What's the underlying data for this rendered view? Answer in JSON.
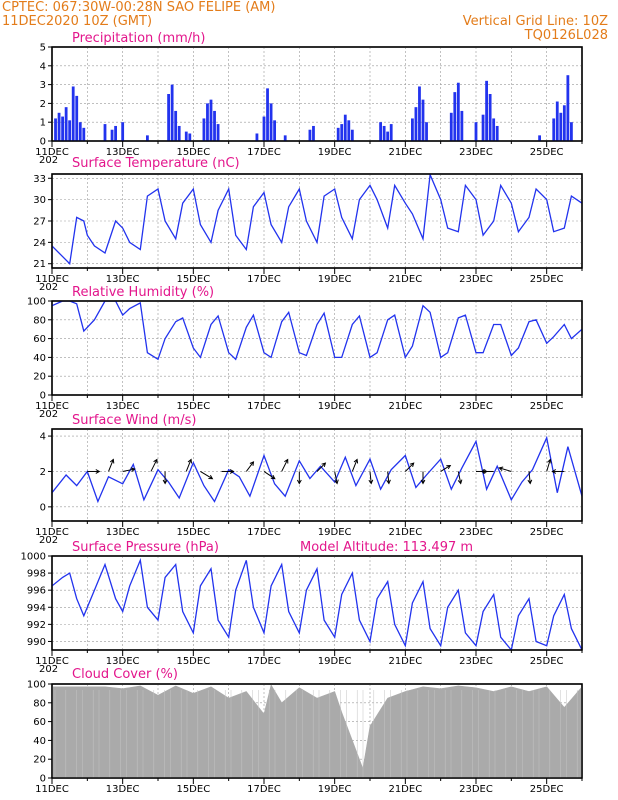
{
  "header": {
    "line1": "CPTEC:   067:30W-00:28N  SAO FELIPE (AM)",
    "line2": "11DEC2020 10Z (GMT)",
    "right1": "Vertical Grid Line: 10Z",
    "right2": "TQ0126L028"
  },
  "colors": {
    "series": "#2233ee",
    "cloud": "#aaaaaa",
    "header": "#e37c1a",
    "title": "#e3168c",
    "grid": "#999999"
  },
  "x_ticks": [
    "11DEC",
    "13DEC",
    "15DEC",
    "17DEC",
    "19DEC",
    "21DEC",
    "23DEC",
    "25DEC"
  ],
  "year_stub": "202",
  "chart_data": [
    {
      "id": "precipitation",
      "type": "bar",
      "title": "Precipitation (mm/h)",
      "ylim": [
        0,
        5
      ],
      "yticks": [
        0,
        1,
        2,
        3,
        4,
        5
      ],
      "grid": true,
      "x_days": [
        0.1,
        0.2,
        0.3,
        0.4,
        0.5,
        0.6,
        0.7,
        0.8,
        0.9,
        1.5,
        1.7,
        1.8,
        2.0,
        2.7,
        3.3,
        3.4,
        3.5,
        3.6,
        3.8,
        3.9,
        4.3,
        4.4,
        4.5,
        4.6,
        4.7,
        5.8,
        6.0,
        6.1,
        6.2,
        6.3,
        6.6,
        7.3,
        7.4,
        8.1,
        8.2,
        8.3,
        8.4,
        8.5,
        9.3,
        9.4,
        9.5,
        9.6,
        10.2,
        10.3,
        10.4,
        10.5,
        10.6,
        11.3,
        11.4,
        11.5,
        11.6,
        12.0,
        12.2,
        12.3,
        12.4,
        12.5,
        12.6,
        13.8,
        14.2,
        14.3,
        14.4,
        14.5,
        14.6,
        14.7
      ],
      "values": [
        1.2,
        1.5,
        1.3,
        1.8,
        1.1,
        2.9,
        2.4,
        1.0,
        0.7,
        0.9,
        0.6,
        0.8,
        1.0,
        0.3,
        2.5,
        3.0,
        1.6,
        0.8,
        0.5,
        0.4,
        1.2,
        2.0,
        2.2,
        1.6,
        0.9,
        0.4,
        1.3,
        2.8,
        2.0,
        1.1,
        0.3,
        0.6,
        0.8,
        0.7,
        0.9,
        1.4,
        1.1,
        0.6,
        1.0,
        0.8,
        0.5,
        0.9,
        1.2,
        1.8,
        2.9,
        2.2,
        1.0,
        1.5,
        2.6,
        3.1,
        1.6,
        1.0,
        1.4,
        3.2,
        2.5,
        1.2,
        0.8,
        0.3,
        1.2,
        2.1,
        1.5,
        1.9,
        3.5,
        1.0
      ]
    },
    {
      "id": "temperature",
      "type": "line",
      "title": "Surface Temperature (nC)",
      "ylim": [
        20.4,
        33.6
      ],
      "yticks": [
        21,
        24,
        27,
        30,
        33
      ],
      "grid": true,
      "x_days": [
        0.0,
        0.3,
        0.5,
        0.7,
        0.9,
        1.0,
        1.2,
        1.5,
        1.8,
        2.0,
        2.2,
        2.5,
        2.7,
        3.0,
        3.2,
        3.5,
        3.7,
        4.0,
        4.2,
        4.5,
        4.7,
        5.0,
        5.2,
        5.5,
        5.7,
        6.0,
        6.2,
        6.5,
        6.7,
        7.0,
        7.2,
        7.5,
        7.7,
        8.0,
        8.2,
        8.5,
        8.7,
        9.0,
        9.2,
        9.5,
        9.7,
        10.0,
        10.2,
        10.5,
        10.7,
        11.0,
        11.2,
        11.5,
        11.7,
        12.0,
        12.2,
        12.5,
        12.7,
        13.0,
        13.2,
        13.5,
        13.7,
        14.0,
        14.2,
        14.5,
        14.7,
        15.0
      ],
      "values": [
        23.5,
        22.0,
        21.0,
        27.5,
        27.0,
        25.0,
        23.5,
        22.5,
        27.0,
        26.0,
        24.0,
        23.0,
        30.5,
        31.5,
        27.0,
        24.5,
        29.5,
        31.5,
        26.5,
        24.0,
        28.5,
        31.5,
        25.0,
        23.0,
        29.0,
        31.0,
        26.5,
        24.0,
        29.0,
        31.5,
        27.0,
        24.0,
        30.5,
        31.5,
        27.5,
        24.5,
        30.0,
        32.0,
        30.0,
        26.0,
        32.0,
        29.5,
        28.0,
        24.5,
        33.5,
        30.0,
        26.0,
        25.5,
        32.0,
        30.0,
        25.0,
        27.0,
        32.0,
        29.5,
        25.5,
        27.5,
        31.5,
        30.0,
        25.5,
        26.0,
        30.5,
        29.5
      ]
    },
    {
      "id": "humidity",
      "type": "line",
      "title": "Relative Humidity (%)",
      "ylim": [
        0,
        100
      ],
      "yticks": [
        0,
        20,
        40,
        60,
        80,
        100
      ],
      "grid": true,
      "x_days": [
        0.0,
        0.3,
        0.5,
        0.7,
        0.9,
        1.2,
        1.5,
        1.8,
        2.0,
        2.2,
        2.5,
        2.7,
        3.0,
        3.2,
        3.5,
        3.7,
        4.0,
        4.2,
        4.5,
        4.7,
        5.0,
        5.2,
        5.5,
        5.7,
        6.0,
        6.2,
        6.5,
        6.7,
        7.0,
        7.2,
        7.5,
        7.7,
        8.0,
        8.2,
        8.5,
        8.7,
        9.0,
        9.2,
        9.5,
        9.7,
        10.0,
        10.2,
        10.5,
        10.7,
        11.0,
        11.2,
        11.5,
        11.7,
        12.0,
        12.2,
        12.5,
        12.7,
        13.0,
        13.2,
        13.5,
        13.7,
        14.0,
        14.2,
        14.5,
        14.7,
        15.0
      ],
      "values": [
        95,
        100,
        100,
        97,
        68,
        80,
        100,
        100,
        85,
        92,
        98,
        45,
        38,
        60,
        78,
        82,
        50,
        40,
        75,
        84,
        45,
        38,
        72,
        85,
        45,
        40,
        78,
        88,
        45,
        42,
        75,
        87,
        40,
        40,
        75,
        84,
        40,
        45,
        80,
        85,
        40,
        52,
        95,
        88,
        40,
        45,
        82,
        85,
        45,
        45,
        75,
        75,
        42,
        50,
        78,
        80,
        55,
        62,
        75,
        60,
        70
      ]
    },
    {
      "id": "wind",
      "type": "line",
      "title": "Surface Wind (m/s)",
      "ylim": [
        -0.8,
        4.4
      ],
      "yticks": [
        0,
        2,
        4
      ],
      "grid": true,
      "x_days": [
        0.0,
        0.4,
        0.7,
        1.0,
        1.3,
        1.6,
        2.0,
        2.3,
        2.6,
        3.0,
        3.3,
        3.6,
        4.0,
        4.3,
        4.6,
        5.0,
        5.3,
        5.6,
        6.0,
        6.3,
        6.6,
        7.0,
        7.3,
        7.6,
        8.0,
        8.3,
        8.6,
        9.0,
        9.3,
        9.6,
        10.0,
        10.3,
        10.6,
        11.0,
        11.3,
        11.6,
        12.0,
        12.3,
        12.6,
        13.0,
        13.3,
        13.6,
        14.0,
        14.3,
        14.6,
        15.0
      ],
      "values": [
        0.8,
        1.8,
        1.2,
        2.0,
        0.3,
        1.7,
        1.3,
        2.4,
        0.4,
        2.1,
        1.4,
        0.5,
        2.5,
        1.2,
        0.3,
        2.1,
        1.7,
        0.6,
        2.9,
        1.3,
        0.6,
        2.6,
        1.6,
        2.3,
        1.4,
        2.8,
        1.2,
        2.7,
        1.0,
        2.1,
        2.9,
        1.1,
        1.8,
        2.7,
        1.0,
        2.2,
        3.7,
        1.0,
        2.3,
        0.4,
        1.4,
        2.1,
        3.9,
        0.8,
        3.4,
        0.6
      ],
      "vectors": [
        {
          "day": 1.0,
          "u": 1,
          "v": 0
        },
        {
          "day": 1.6,
          "u": 0.4,
          "v": 1
        },
        {
          "day": 2.0,
          "u": 1,
          "v": 0.2
        },
        {
          "day": 2.8,
          "u": 0.5,
          "v": 1
        },
        {
          "day": 3.2,
          "u": 0,
          "v": -1
        },
        {
          "day": 3.8,
          "u": 0.4,
          "v": 1
        },
        {
          "day": 4.2,
          "u": 1,
          "v": -0.6
        },
        {
          "day": 4.8,
          "u": 1,
          "v": 0
        },
        {
          "day": 5.5,
          "u": 0.6,
          "v": 0.8
        },
        {
          "day": 6.0,
          "u": 0.9,
          "v": -0.6
        },
        {
          "day": 6.5,
          "u": 0.5,
          "v": 1
        },
        {
          "day": 7.0,
          "u": 0,
          "v": -1
        },
        {
          "day": 7.5,
          "u": 0.7,
          "v": 0.7
        },
        {
          "day": 8.0,
          "u": 0.2,
          "v": -1
        },
        {
          "day": 8.5,
          "u": 0.4,
          "v": 1
        },
        {
          "day": 9.0,
          "u": 0.1,
          "v": -1
        },
        {
          "day": 9.5,
          "u": 0.1,
          "v": -1
        },
        {
          "day": 10.0,
          "u": 0.7,
          "v": 0.7
        },
        {
          "day": 10.5,
          "u": 0,
          "v": -1
        },
        {
          "day": 11.0,
          "u": 0.8,
          "v": 0.5
        },
        {
          "day": 11.5,
          "u": 0.2,
          "v": -1
        },
        {
          "day": 12.0,
          "u": 0.9,
          "v": 0
        },
        {
          "day": 12.5,
          "u": -1,
          "v": 0
        },
        {
          "day": 13.0,
          "u": -1,
          "v": 0.3
        },
        {
          "day": 13.5,
          "u": 0.1,
          "v": -1
        },
        {
          "day": 14.0,
          "u": 0.3,
          "v": 1
        },
        {
          "day": 14.5,
          "u": -1,
          "v": 0
        }
      ]
    },
    {
      "id": "pressure",
      "type": "line",
      "title": "Surface Pressure (hPa)",
      "annotation": "Model Altitude: 113.497 m",
      "ylim": [
        989,
        1000
      ],
      "yticks": [
        990,
        992,
        994,
        996,
        998,
        1000
      ],
      "grid": true,
      "x_days": [
        0.0,
        0.3,
        0.5,
        0.7,
        0.9,
        1.2,
        1.5,
        1.8,
        2.0,
        2.2,
        2.5,
        2.7,
        3.0,
        3.2,
        3.5,
        3.7,
        4.0,
        4.2,
        4.5,
        4.7,
        5.0,
        5.2,
        5.5,
        5.7,
        6.0,
        6.2,
        6.5,
        6.7,
        7.0,
        7.2,
        7.5,
        7.7,
        8.0,
        8.2,
        8.5,
        8.7,
        9.0,
        9.2,
        9.5,
        9.7,
        10.0,
        10.2,
        10.5,
        10.7,
        11.0,
        11.2,
        11.5,
        11.7,
        12.0,
        12.2,
        12.5,
        12.7,
        13.0,
        13.2,
        13.5,
        13.7,
        14.0,
        14.2,
        14.5,
        14.7,
        15.0
      ],
      "values": [
        996.5,
        997.5,
        998.0,
        995.0,
        993.0,
        996.0,
        999.0,
        995.0,
        993.5,
        996.5,
        999.5,
        994.0,
        992.5,
        997.5,
        999.0,
        993.5,
        991.0,
        996.5,
        998.5,
        992.5,
        990.5,
        996.0,
        999.5,
        994.0,
        991.0,
        996.5,
        999.0,
        993.5,
        991.0,
        996.0,
        998.5,
        992.5,
        990.5,
        995.5,
        998.0,
        992.5,
        990.0,
        995.0,
        997.0,
        992.0,
        989.5,
        994.5,
        997.0,
        991.5,
        989.5,
        994.0,
        996.0,
        991.0,
        989.5,
        993.5,
        995.5,
        990.5,
        989.0,
        993.0,
        995.0,
        990.0,
        989.5,
        993.0,
        995.5,
        991.5,
        989.0
      ]
    },
    {
      "id": "cloud",
      "type": "area",
      "title": "Cloud Cover (%)",
      "ylim": [
        0,
        100
      ],
      "yticks": [
        0,
        20,
        40,
        60,
        80,
        100
      ],
      "grid": true,
      "x_days": [
        0.0,
        1.0,
        1.5,
        2.0,
        2.5,
        3.0,
        3.5,
        4.0,
        4.5,
        5.0,
        5.5,
        6.0,
        6.2,
        6.5,
        7.0,
        7.5,
        8.0,
        8.2,
        8.5,
        8.8,
        9.0,
        9.5,
        10.0,
        10.5,
        11.0,
        11.5,
        12.0,
        12.5,
        13.0,
        13.5,
        14.0,
        14.5,
        15.0
      ],
      "values": [
        97,
        97,
        97,
        95,
        98,
        88,
        98,
        90,
        97,
        85,
        92,
        68,
        99,
        80,
        96,
        85,
        92,
        70,
        40,
        10,
        55,
        85,
        92,
        97,
        95,
        98,
        96,
        92,
        97,
        92,
        97,
        75,
        97
      ]
    }
  ]
}
